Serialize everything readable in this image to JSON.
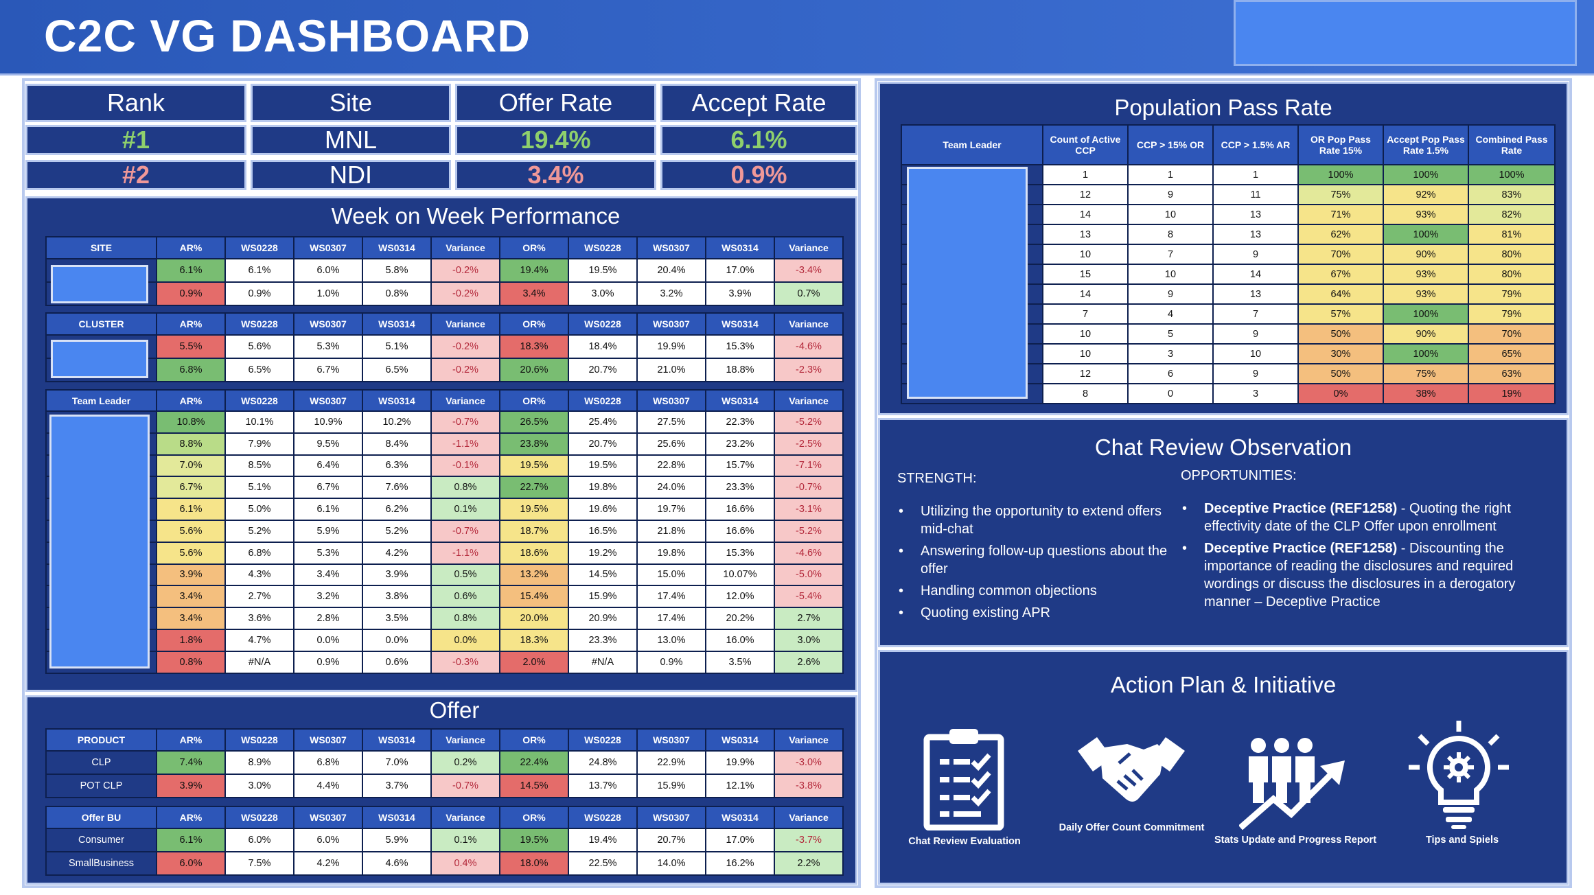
{
  "title": "C2C VG DASHBOARD",
  "rank": {
    "headers": [
      "Rank",
      "Site",
      "Offer Rate",
      "Accept Rate"
    ],
    "rows": [
      [
        "#1",
        "MNL",
        "19.4%",
        "6.1%"
      ],
      [
        "#2",
        "NDI",
        "3.4%",
        "0.9%"
      ]
    ]
  },
  "colors": {
    "green": "#79bd72",
    "lightgreen": "#c9ebc2",
    "yellow": "#f6e48a",
    "lightyellow": "#e3e99a",
    "orange": "#f4bf7e",
    "red": "#e46c6a",
    "pink": "#f7c8c8",
    "white": "#ffffff"
  },
  "wow": {
    "title": "Week on Week Performance",
    "site": {
      "headers": [
        "SITE",
        "AR%",
        "WS0228",
        "WS0307",
        "WS0314",
        "Variance",
        "OR%",
        "WS0228",
        "WS0307",
        "WS0314",
        "Variance"
      ],
      "rows": [
        [
          "",
          "6.1%",
          "6.1%",
          "6.0%",
          "5.8%",
          "-0.2%",
          "19.4%",
          "19.5%",
          "20.4%",
          "17.0%",
          "-3.4%"
        ],
        [
          "",
          "0.9%",
          "0.9%",
          "1.0%",
          "0.8%",
          "-0.2%",
          "3.4%",
          "3.0%",
          "3.2%",
          "3.9%",
          "0.7%"
        ]
      ],
      "colors": [
        [
          "",
          "g",
          "w",
          "w",
          "w",
          "p",
          "g",
          "w",
          "w",
          "w",
          "p"
        ],
        [
          "",
          "r",
          "w",
          "w",
          "w",
          "p",
          "r",
          "w",
          "w",
          "w",
          "lg"
        ]
      ]
    },
    "cluster": {
      "headers": [
        "CLUSTER",
        "AR%",
        "WS0228",
        "WS0307",
        "WS0314",
        "Variance",
        "OR%",
        "WS0228",
        "WS0307",
        "WS0314",
        "Variance"
      ],
      "rows": [
        [
          "",
          "5.5%",
          "5.6%",
          "5.3%",
          "5.1%",
          "-0.2%",
          "18.3%",
          "18.4%",
          "19.9%",
          "15.3%",
          "-4.6%"
        ],
        [
          "",
          "6.8%",
          "6.5%",
          "6.7%",
          "6.5%",
          "-0.2%",
          "20.6%",
          "20.7%",
          "21.0%",
          "18.8%",
          "-2.3%"
        ]
      ],
      "colors": [
        [
          "",
          "r",
          "w",
          "w",
          "w",
          "p",
          "r",
          "w",
          "w",
          "w",
          "p"
        ],
        [
          "",
          "g",
          "w",
          "w",
          "w",
          "p",
          "g",
          "w",
          "w",
          "w",
          "p"
        ]
      ]
    },
    "tl": {
      "headers": [
        "Team Leader",
        "AR%",
        "WS0228",
        "WS0307",
        "WS0314",
        "Variance",
        "OR%",
        "WS0228",
        "WS0307",
        "WS0314",
        "Variance"
      ],
      "rows": [
        [
          "",
          "10.8%",
          "10.1%",
          "10.9%",
          "10.2%",
          "-0.7%",
          "26.5%",
          "25.4%",
          "27.5%",
          "22.3%",
          "-5.2%"
        ],
        [
          "",
          "8.8%",
          "7.9%",
          "9.5%",
          "8.4%",
          "-1.1%",
          "23.8%",
          "20.7%",
          "25.6%",
          "23.2%",
          "-2.5%"
        ],
        [
          "",
          "7.0%",
          "8.5%",
          "6.4%",
          "6.3%",
          "-0.1%",
          "19.5%",
          "19.5%",
          "22.8%",
          "15.7%",
          "-7.1%"
        ],
        [
          "",
          "6.7%",
          "5.1%",
          "6.7%",
          "7.6%",
          "0.8%",
          "22.7%",
          "19.8%",
          "24.0%",
          "23.3%",
          "-0.7%"
        ],
        [
          "",
          "6.1%",
          "5.0%",
          "6.1%",
          "6.2%",
          "0.1%",
          "19.5%",
          "19.6%",
          "19.7%",
          "16.6%",
          "-3.1%"
        ],
        [
          "",
          "5.6%",
          "5.2%",
          "5.9%",
          "5.2%",
          "-0.7%",
          "18.7%",
          "16.5%",
          "21.8%",
          "16.6%",
          "-5.2%"
        ],
        [
          "",
          "5.6%",
          "6.8%",
          "5.3%",
          "4.2%",
          "-1.1%",
          "18.6%",
          "19.2%",
          "19.8%",
          "15.3%",
          "-4.6%"
        ],
        [
          "",
          "3.9%",
          "4.3%",
          "3.4%",
          "3.9%",
          "0.5%",
          "13.2%",
          "14.5%",
          "15.0%",
          "10.07%",
          "-5.0%"
        ],
        [
          "",
          "3.4%",
          "2.7%",
          "3.2%",
          "3.8%",
          "0.6%",
          "15.4%",
          "15.9%",
          "17.4%",
          "12.0%",
          "-5.4%"
        ],
        [
          "",
          "3.4%",
          "3.6%",
          "2.8%",
          "3.5%",
          "0.8%",
          "20.0%",
          "20.9%",
          "17.4%",
          "20.2%",
          "2.7%"
        ],
        [
          "",
          "1.8%",
          "4.7%",
          "0.0%",
          "0.0%",
          "0.0%",
          "18.3%",
          "23.3%",
          "13.0%",
          "16.0%",
          "3.0%"
        ],
        [
          "",
          "0.8%",
          "#N/A",
          "0.9%",
          "0.6%",
          "-0.3%",
          "2.0%",
          "#N/A",
          "0.9%",
          "3.5%",
          "2.6%"
        ]
      ],
      "colors": [
        [
          "",
          "g",
          "w",
          "w",
          "w",
          "p",
          "g",
          "w",
          "w",
          "w",
          "p"
        ],
        [
          "",
          "lyg",
          "w",
          "w",
          "w",
          "p",
          "g",
          "w",
          "w",
          "w",
          "p"
        ],
        [
          "",
          "ly",
          "w",
          "w",
          "w",
          "p",
          "y",
          "w",
          "w",
          "w",
          "p"
        ],
        [
          "",
          "ly",
          "w",
          "w",
          "w",
          "lg",
          "g",
          "w",
          "w",
          "w",
          "p"
        ],
        [
          "",
          "y",
          "w",
          "w",
          "w",
          "lg",
          "y",
          "w",
          "w",
          "w",
          "p"
        ],
        [
          "",
          "y",
          "w",
          "w",
          "w",
          "p",
          "y",
          "w",
          "w",
          "w",
          "p"
        ],
        [
          "",
          "y",
          "w",
          "w",
          "w",
          "p",
          "y",
          "w",
          "w",
          "w",
          "p"
        ],
        [
          "",
          "o",
          "w",
          "w",
          "w",
          "lg",
          "o",
          "w",
          "w",
          "w",
          "p"
        ],
        [
          "",
          "o",
          "w",
          "w",
          "w",
          "lg",
          "o",
          "w",
          "w",
          "w",
          "p"
        ],
        [
          "",
          "o",
          "w",
          "w",
          "w",
          "lg",
          "y",
          "w",
          "w",
          "w",
          "lg"
        ],
        [
          "",
          "r",
          "w",
          "w",
          "w",
          "y",
          "y",
          "w",
          "w",
          "w",
          "lg"
        ],
        [
          "",
          "r",
          "w",
          "w",
          "w",
          "p",
          "r",
          "w",
          "w",
          "w",
          "lg"
        ]
      ]
    }
  },
  "offer": {
    "title": "Offer",
    "product": {
      "headers": [
        "PRODUCT",
        "AR%",
        "WS0228",
        "WS0307",
        "WS0314",
        "Variance",
        "OR%",
        "WS0228",
        "WS0307",
        "WS0314",
        "Variance"
      ],
      "rows": [
        [
          "CLP",
          "7.4%",
          "8.9%",
          "6.8%",
          "7.0%",
          "0.2%",
          "22.4%",
          "24.8%",
          "22.9%",
          "19.9%",
          "-3.0%"
        ],
        [
          "POT CLP",
          "3.9%",
          "3.0%",
          "4.4%",
          "3.7%",
          "-0.7%",
          "14.5%",
          "13.7%",
          "15.9%",
          "12.1%",
          "-3.8%"
        ]
      ],
      "colors": [
        [
          "",
          "g",
          "w",
          "w",
          "w",
          "lg",
          "g",
          "w",
          "w",
          "w",
          "p"
        ],
        [
          "",
          "r",
          "w",
          "w",
          "w",
          "p",
          "r",
          "w",
          "w",
          "w",
          "p"
        ]
      ]
    },
    "bu": {
      "headers": [
        "Offer BU",
        "AR%",
        "WS0228",
        "WS0307",
        "WS0314",
        "Variance",
        "OR%",
        "WS0228",
        "WS0307",
        "WS0314",
        "Variance"
      ],
      "rows": [
        [
          "Consumer",
          "6.1%",
          "6.0%",
          "6.0%",
          "5.9%",
          "0.1%",
          "19.5%",
          "19.4%",
          "20.7%",
          "17.0%",
          "-3.7%"
        ],
        [
          "SmallBusiness",
          "6.0%",
          "7.5%",
          "4.2%",
          "4.6%",
          "0.4%",
          "18.0%",
          "22.5%",
          "14.0%",
          "16.2%",
          "2.2%"
        ]
      ],
      "colors": [
        [
          "",
          "g",
          "w",
          "w",
          "w",
          "lg",
          "g",
          "w",
          "w",
          "w",
          "lg"
        ],
        [
          "",
          "r",
          "w",
          "w",
          "w",
          "p",
          "r",
          "w",
          "w",
          "w",
          "lg"
        ]
      ]
    }
  },
  "pop": {
    "title": "Population Pass Rate",
    "headers": [
      "Team Leader",
      "Count of Active CCP",
      "CCP > 15% OR",
      "CCP > 1.5% AR",
      "OR Pop Pass Rate 15%",
      "Accept Pop Pass Rate 1.5%",
      "Combined Pass Rate"
    ],
    "rows": [
      [
        "",
        "1",
        "1",
        "1",
        "100%",
        "100%",
        "100%"
      ],
      [
        "",
        "12",
        "9",
        "11",
        "75%",
        "92%",
        "83%"
      ],
      [
        "",
        "14",
        "10",
        "13",
        "71%",
        "93%",
        "82%"
      ],
      [
        "",
        "13",
        "8",
        "13",
        "62%",
        "100%",
        "81%"
      ],
      [
        "",
        "10",
        "7",
        "9",
        "70%",
        "90%",
        "80%"
      ],
      [
        "",
        "15",
        "10",
        "14",
        "67%",
        "93%",
        "80%"
      ],
      [
        "",
        "14",
        "9",
        "13",
        "64%",
        "93%",
        "79%"
      ],
      [
        "",
        "7",
        "4",
        "7",
        "57%",
        "100%",
        "79%"
      ],
      [
        "",
        "10",
        "5",
        "9",
        "50%",
        "90%",
        "70%"
      ],
      [
        "",
        "10",
        "3",
        "10",
        "30%",
        "100%",
        "65%"
      ],
      [
        "",
        "12",
        "6",
        "9",
        "50%",
        "75%",
        "63%"
      ],
      [
        "",
        "8",
        "0",
        "3",
        "0%",
        "38%",
        "19%"
      ]
    ],
    "colors": [
      [
        "",
        "w",
        "w",
        "w",
        "g",
        "g",
        "g"
      ],
      [
        "",
        "w",
        "w",
        "w",
        "ly",
        "y",
        "ly"
      ],
      [
        "",
        "w",
        "w",
        "w",
        "y",
        "y",
        "ly"
      ],
      [
        "",
        "w",
        "w",
        "w",
        "y",
        "g",
        "y"
      ],
      [
        "",
        "w",
        "w",
        "w",
        "y",
        "y",
        "y"
      ],
      [
        "",
        "w",
        "w",
        "w",
        "y",
        "y",
        "y"
      ],
      [
        "",
        "w",
        "w",
        "w",
        "y",
        "y",
        "y"
      ],
      [
        "",
        "w",
        "w",
        "w",
        "y",
        "g",
        "y"
      ],
      [
        "",
        "w",
        "w",
        "w",
        "o",
        "y",
        "o"
      ],
      [
        "",
        "w",
        "w",
        "w",
        "o",
        "g",
        "o"
      ],
      [
        "",
        "w",
        "w",
        "w",
        "o",
        "o",
        "o"
      ],
      [
        "",
        "w",
        "w",
        "w",
        "r",
        "r",
        "r"
      ]
    ]
  },
  "obs": {
    "title": "Chat Review Observation",
    "strength_label": "STRENGTH:",
    "strengths": [
      "Utilizing the opportunity to extend offers mid-chat",
      "Answering follow-up questions about the offer",
      "Handling common objections",
      "Quoting existing APR"
    ],
    "opp_label": "OPPORTUNITIES:",
    "opps": [
      {
        "bold": "Deceptive Practice (REF1258)",
        "text": " - Quoting the right effectivity date of the CLP Offer upon enrollment"
      },
      {
        "bold": "Deceptive Practice (REF1258)",
        "text": " - Discounting the importance of reading the disclosures and required wordings or discuss the disclosures in a derogatory manner – Deceptive Practice"
      }
    ]
  },
  "action": {
    "title": "Action Plan & Initiative",
    "items": [
      {
        "label": "Chat Review Evaluation",
        "icon": "clipboard-checklist-icon"
      },
      {
        "label": "Daily Offer Count Commitment",
        "icon": "handshake-icon"
      },
      {
        "label": "Stats Update and Progress Report",
        "icon": "people-growth-icon"
      },
      {
        "label": "Tips and Spiels",
        "icon": "lightbulb-gear-icon"
      }
    ]
  }
}
